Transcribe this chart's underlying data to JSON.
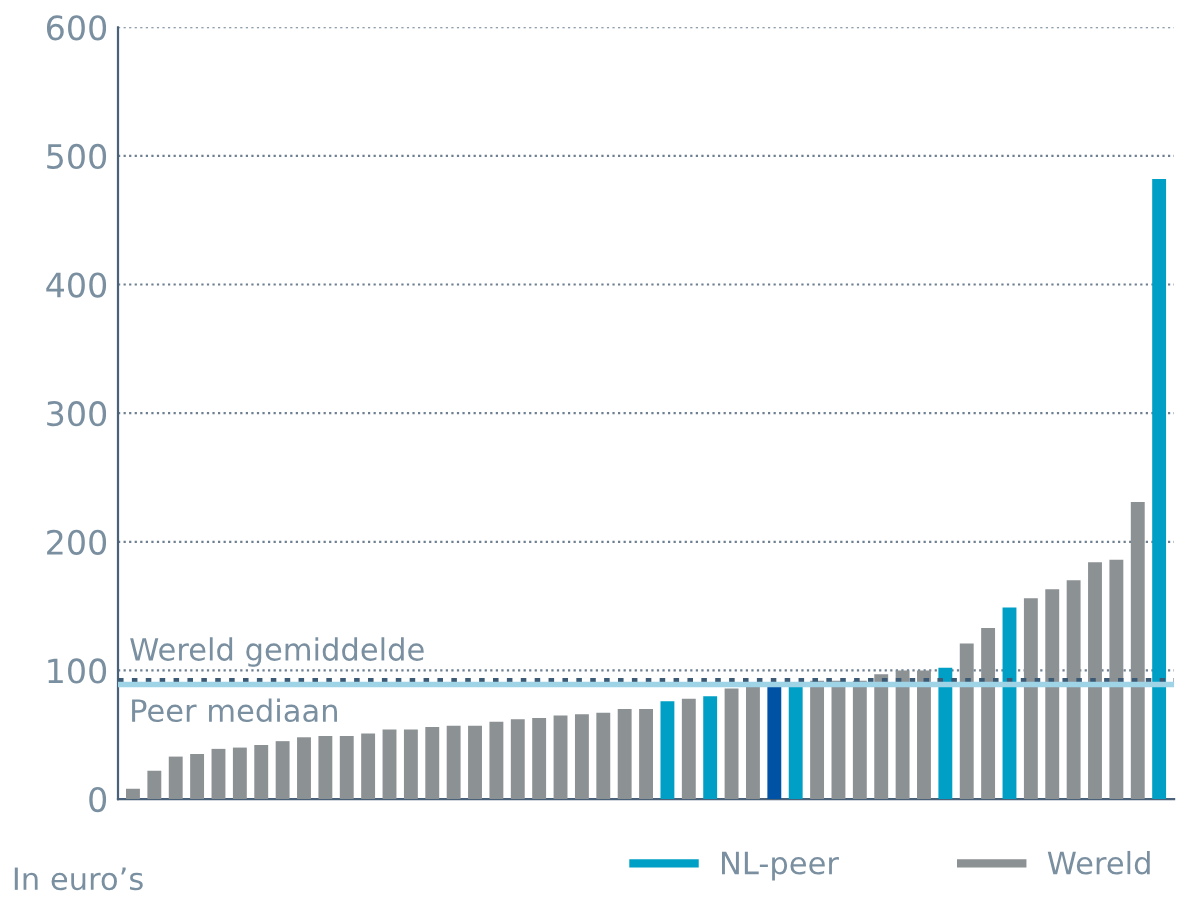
{
  "chart_data": {
    "type": "bar",
    "categories": [
      null,
      null,
      null,
      null,
      null,
      null,
      null,
      null,
      null,
      null,
      null,
      null,
      null,
      null,
      null,
      null,
      null,
      null,
      null,
      null,
      null,
      null,
      null,
      null,
      null,
      null,
      null,
      null,
      null,
      null,
      null,
      null,
      null,
      null,
      null,
      null,
      null,
      null,
      null,
      null,
      null,
      null,
      null,
      null,
      null,
      null,
      null,
      null,
      null
    ],
    "series": [
      {
        "color": "#0052a5",
        "values": [
          null,
          null,
          null,
          null,
          null,
          null,
          null,
          null,
          null,
          null,
          null,
          null,
          null,
          null,
          null,
          null,
          null,
          null,
          null,
          null,
          null,
          null,
          null,
          null,
          null,
          null,
          null,
          null,
          null,
          null,
          88,
          null,
          null,
          null,
          null,
          null,
          null,
          null,
          null,
          null,
          null,
          null,
          null,
          null,
          null,
          null,
          null,
          null,
          null
        ]
      },
      {
        "name": "NL-peer",
        "color": "#00a0c6",
        "values": [
          null,
          null,
          null,
          null,
          null,
          null,
          null,
          null,
          null,
          null,
          null,
          null,
          null,
          null,
          null,
          null,
          null,
          null,
          null,
          null,
          null,
          null,
          null,
          null,
          null,
          76,
          null,
          80,
          null,
          null,
          null,
          88,
          null,
          null,
          null,
          null,
          null,
          null,
          102,
          null,
          null,
          149,
          null,
          null,
          null,
          null,
          null,
          null,
          482
        ]
      },
      {
        "name": "Wereld",
        "color": "#8c9194",
        "values": [
          8,
          22,
          33,
          35,
          39,
          40,
          42,
          45,
          48,
          49,
          49,
          51,
          54,
          54,
          56,
          57,
          57,
          60,
          62,
          63,
          65,
          66,
          67,
          70,
          70,
          null,
          78,
          null,
          86,
          88,
          null,
          null,
          92,
          92,
          92,
          97,
          100,
          100,
          null,
          121,
          133,
          null,
          156,
          163,
          170,
          184,
          186,
          231,
          null
        ]
      }
    ],
    "ylim": [
      0,
      600
    ],
    "yticks": [
      0,
      100,
      200,
      300,
      400,
      500,
      600
    ],
    "grid": "y",
    "legend": "bottom",
    "ref_lines": [
      {
        "axis": "y",
        "value": 92,
        "label": "Wereld gemiddelde",
        "color": "#3d5a75",
        "line_style": "dotted"
      },
      {
        "axis": "y",
        "value": 89,
        "label": "Peer mediaan",
        "color": "#9fd3e6",
        "line_style": "solid"
      }
    ],
    "annotations": [
      "In euro’s"
    ]
  }
}
